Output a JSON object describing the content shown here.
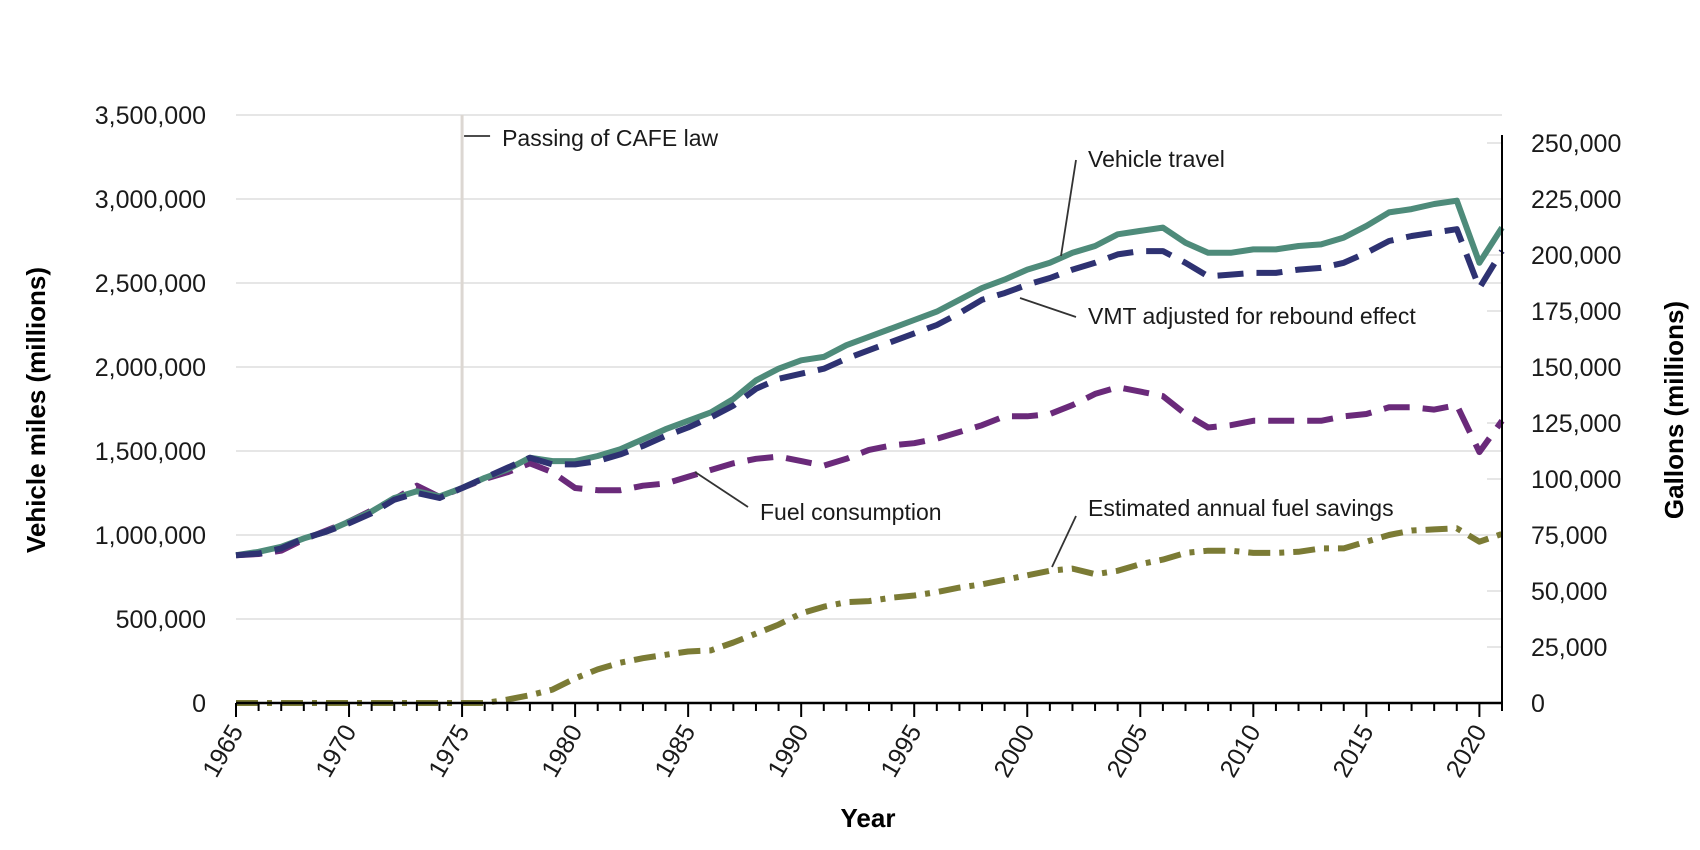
{
  "chart_data": {
    "type": "line",
    "xlabel": "Year",
    "ylabel_left": "Vehicle miles (millions)",
    "ylabel_right": "Gallons (millions)",
    "xlim": [
      1965,
      2021
    ],
    "ylim_left": [
      0,
      3500000
    ],
    "ylim_right": [
      0,
      262500
    ],
    "x_ticks": [
      "1965",
      "1970",
      "1975",
      "1980",
      "1985",
      "1990",
      "1995",
      "2000",
      "2005",
      "2010",
      "2015",
      "2020"
    ],
    "y_left_ticks": [
      "0",
      "500,000",
      "1,000,000",
      "1,500,000",
      "2,000,000",
      "2,500,000",
      "3,000,000",
      "3,500,000"
    ],
    "y_right_ticks": [
      "0",
      "25,000",
      "50,000",
      "75,000",
      "100,000",
      "125,000",
      "150,000",
      "175,000",
      "200,000",
      "225,000",
      "250,000"
    ],
    "grid": true,
    "series": [
      {
        "name": "Vehicle travel",
        "axis": "left",
        "color": "#4e8b7a",
        "style": "solid",
        "x": [
          1965,
          1966,
          1967,
          1968,
          1969,
          1970,
          1971,
          1972,
          1973,
          1974,
          1975,
          1976,
          1977,
          1978,
          1979,
          1980,
          1981,
          1982,
          1983,
          1984,
          1985,
          1986,
          1987,
          1988,
          1989,
          1990,
          1991,
          1992,
          1993,
          1994,
          1995,
          1996,
          1997,
          1998,
          1999,
          2000,
          2001,
          2002,
          2003,
          2004,
          2005,
          2006,
          2007,
          2008,
          2009,
          2010,
          2011,
          2012,
          2013,
          2014,
          2015,
          2016,
          2017,
          2018,
          2019,
          2020,
          2021
        ],
        "values": [
          880000,
          900000,
          930000,
          980000,
          1020000,
          1080000,
          1140000,
          1220000,
          1260000,
          1230000,
          1280000,
          1340000,
          1390000,
          1460000,
          1440000,
          1440000,
          1470000,
          1510000,
          1570000,
          1630000,
          1680000,
          1730000,
          1810000,
          1920000,
          1990000,
          2040000,
          2060000,
          2130000,
          2180000,
          2230000,
          2280000,
          2330000,
          2400000,
          2470000,
          2520000,
          2580000,
          2620000,
          2680000,
          2720000,
          2790000,
          2810000,
          2830000,
          2740000,
          2680000,
          2680000,
          2700000,
          2700000,
          2720000,
          2730000,
          2770000,
          2840000,
          2920000,
          2940000,
          2970000,
          2990000,
          2620000,
          2830000
        ]
      },
      {
        "name": "VMT adjusted for rebound effect",
        "axis": "left",
        "color": "#2e3272",
        "style": "dashed",
        "x": [
          1965,
          1966,
          1967,
          1968,
          1969,
          1970,
          1971,
          1972,
          1973,
          1974,
          1975,
          1976,
          1977,
          1978,
          1979,
          1980,
          1981,
          1982,
          1983,
          1984,
          1985,
          1986,
          1987,
          1988,
          1989,
          1990,
          1991,
          1992,
          1993,
          1994,
          1995,
          1996,
          1997,
          1998,
          1999,
          2000,
          2001,
          2002,
          2003,
          2004,
          2005,
          2006,
          2007,
          2008,
          2009,
          2010,
          2011,
          2012,
          2013,
          2014,
          2015,
          2016,
          2017,
          2018,
          2019,
          2020,
          2021
        ],
        "values": [
          880000,
          890000,
          920000,
          980000,
          1020000,
          1070000,
          1130000,
          1210000,
          1250000,
          1220000,
          1280000,
          1340000,
          1400000,
          1460000,
          1420000,
          1420000,
          1440000,
          1480000,
          1530000,
          1590000,
          1640000,
          1700000,
          1770000,
          1870000,
          1930000,
          1960000,
          1990000,
          2050000,
          2100000,
          2150000,
          2200000,
          2250000,
          2320000,
          2400000,
          2440000,
          2490000,
          2530000,
          2580000,
          2620000,
          2670000,
          2690000,
          2690000,
          2620000,
          2540000,
          2550000,
          2560000,
          2560000,
          2580000,
          2590000,
          2620000,
          2680000,
          2750000,
          2780000,
          2800000,
          2820000,
          2470000,
          2690000
        ]
      },
      {
        "name": "Fuel consumption",
        "axis": "right",
        "color": "#6a2a7a",
        "style": "dashed",
        "x": [
          1965,
          1966,
          1967,
          1968,
          1969,
          1970,
          1971,
          1972,
          1973,
          1974,
          1975,
          1976,
          1977,
          1978,
          1979,
          1980,
          1981,
          1982,
          1983,
          1984,
          1985,
          1986,
          1987,
          1988,
          1989,
          1990,
          1991,
          1992,
          1993,
          1994,
          1995,
          1996,
          1997,
          1998,
          1999,
          2000,
          2001,
          2002,
          2003,
          2004,
          2005,
          2006,
          2007,
          2008,
          2009,
          2010,
          2011,
          2012,
          2013,
          2014,
          2015,
          2016,
          2017,
          2018,
          2019,
          2020,
          2021
        ],
        "values": [
          66000,
          66500,
          68000,
          73000,
          77000,
          81000,
          86000,
          91000,
          97000,
          92000,
          96000,
          100000,
          103000,
          107000,
          103000,
          96000,
          95000,
          95000,
          97000,
          98000,
          101000,
          104000,
          107000,
          109000,
          110000,
          108000,
          106000,
          109000,
          113000,
          115000,
          116000,
          118000,
          121000,
          124000,
          128000,
          128000,
          129000,
          133000,
          138000,
          141000,
          139000,
          137000,
          129000,
          123000,
          124000,
          126000,
          126000,
          126000,
          126000,
          128000,
          129000,
          132000,
          132000,
          131000,
          133000,
          112000,
          126000
        ]
      },
      {
        "name": "Estimated annual fuel savings",
        "axis": "right",
        "color": "#7b7b35",
        "style": "dashdot",
        "x": [
          1965,
          1966,
          1967,
          1968,
          1969,
          1970,
          1971,
          1972,
          1973,
          1974,
          1975,
          1976,
          1977,
          1978,
          1979,
          1980,
          1981,
          1982,
          1983,
          1984,
          1985,
          1986,
          1987,
          1988,
          1989,
          1990,
          1991,
          1992,
          1993,
          1994,
          1995,
          1996,
          1997,
          1998,
          1999,
          2000,
          2001,
          2002,
          2003,
          2004,
          2005,
          2006,
          2007,
          2008,
          2009,
          2010,
          2011,
          2012,
          2013,
          2014,
          2015,
          2016,
          2017,
          2018,
          2019,
          2020,
          2021
        ],
        "values": [
          0,
          0,
          0,
          0,
          0,
          0,
          0,
          0,
          0,
          0,
          0,
          0,
          1500,
          3500,
          6000,
          11000,
          15000,
          18000,
          20000,
          21500,
          23000,
          23500,
          27000,
          31000,
          35000,
          40000,
          43000,
          45000,
          45500,
          47000,
          48000,
          49500,
          51500,
          53000,
          55000,
          57000,
          59000,
          60000,
          57500,
          59000,
          62000,
          64000,
          67000,
          68000,
          68000,
          67000,
          67000,
          67500,
          69000,
          69000,
          72000,
          75000,
          77000,
          77500,
          78000,
          72000,
          75500
        ]
      }
    ],
    "annotations": [
      {
        "text": "Passing of CAFE law",
        "x": 1975
      },
      {
        "text": "Vehicle travel",
        "series": "Vehicle travel"
      },
      {
        "text": "VMT adjusted for rebound effect",
        "series": "VMT adjusted for rebound effect"
      },
      {
        "text": "Fuel consumption",
        "series": "Fuel consumption"
      },
      {
        "text": "Estimated annual fuel savings",
        "series": "Estimated annual fuel savings"
      }
    ]
  }
}
